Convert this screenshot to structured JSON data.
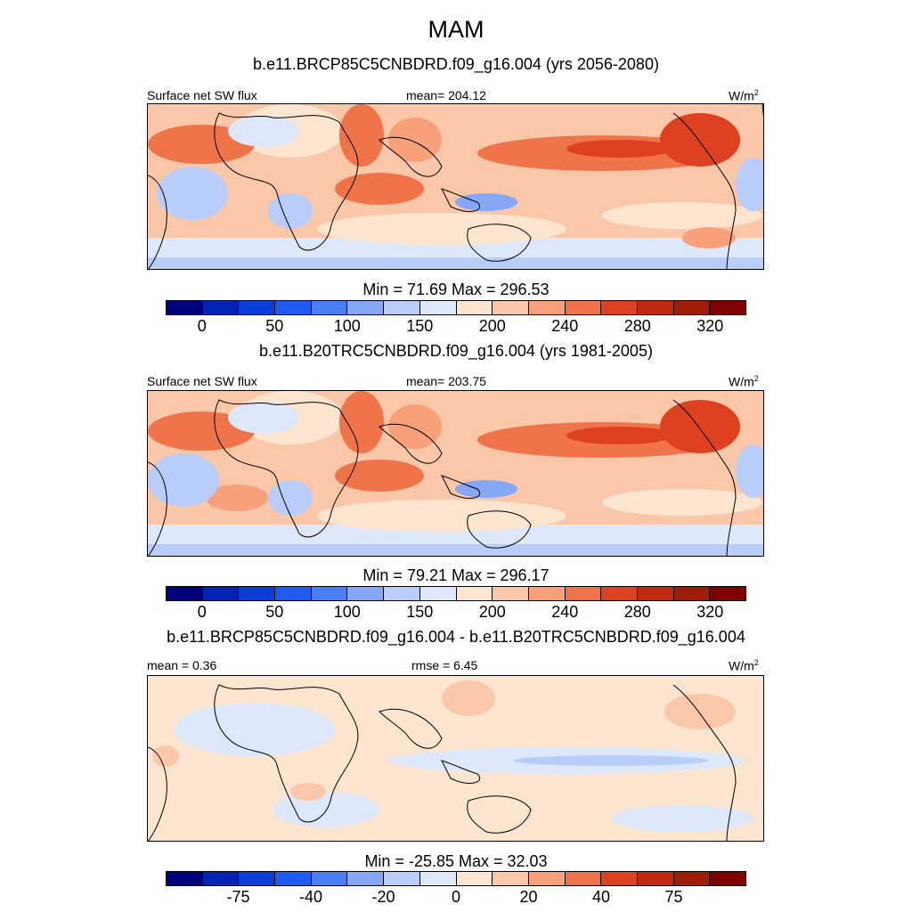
{
  "season": "MAM",
  "units_base": "W/m",
  "units_exp": "2",
  "panels": [
    {
      "case": "b.e11.BRCP85C5CNBDRD.f09_g16.004 (yrs 2056-2080)",
      "variable": "Surface net SW flux",
      "mean": "mean= 204.12",
      "minmax": "Min =  71.69 Max = 296.53",
      "colors": [
        "#00007f",
        "#0624b3",
        "#0a3fd9",
        "#1f5bf0",
        "#4a7ef5",
        "#86a7f5",
        "#b8cdfa",
        "#dde8fb",
        "#fde5cf",
        "#fbc7a9",
        "#f7a07a",
        "#f0744a",
        "#de4120",
        "#c02a10",
        "#a01e08",
        "#800000"
      ],
      "ticks": [
        "0",
        "50",
        "100",
        "150",
        "200",
        "240",
        "280",
        "320"
      ]
    },
    {
      "case": "b.e11.B20TRC5CNBDRD.f09_g16.004 (yrs 1981-2005)",
      "variable": "Surface net SW flux",
      "mean": "mean= 203.75",
      "minmax": "Min =  79.21 Max = 296.17",
      "colors": [
        "#00007f",
        "#0624b3",
        "#0a3fd9",
        "#1f5bf0",
        "#4a7ef5",
        "#86a7f5",
        "#b8cdfa",
        "#dde8fb",
        "#fde5cf",
        "#fbc7a9",
        "#f7a07a",
        "#f0744a",
        "#de4120",
        "#c02a10",
        "#a01e08",
        "#800000"
      ],
      "ticks": [
        "0",
        "50",
        "100",
        "150",
        "200",
        "240",
        "280",
        "320"
      ]
    },
    {
      "case": "b.e11.BRCP85C5CNBDRD.f09_g16.004 - b.e11.B20TRC5CNBDRD.f09_g16.004",
      "variable": "mean =   0.36",
      "mean": "rmse =   6.45",
      "minmax": "Min = -25.85 Max =  32.03",
      "colors": [
        "#00007f",
        "#0624b3",
        "#0a3fd9",
        "#1f5bf0",
        "#4a7ef5",
        "#86a7f5",
        "#b8cdfa",
        "#dde8fb",
        "#fde5cf",
        "#fbc7a9",
        "#f7a07a",
        "#f0744a",
        "#de4120",
        "#c02a10",
        "#a01e08",
        "#800000"
      ],
      "ticks": [
        "-75",
        "-40",
        "-20",
        "0",
        "20",
        "40",
        "75"
      ]
    }
  ]
}
